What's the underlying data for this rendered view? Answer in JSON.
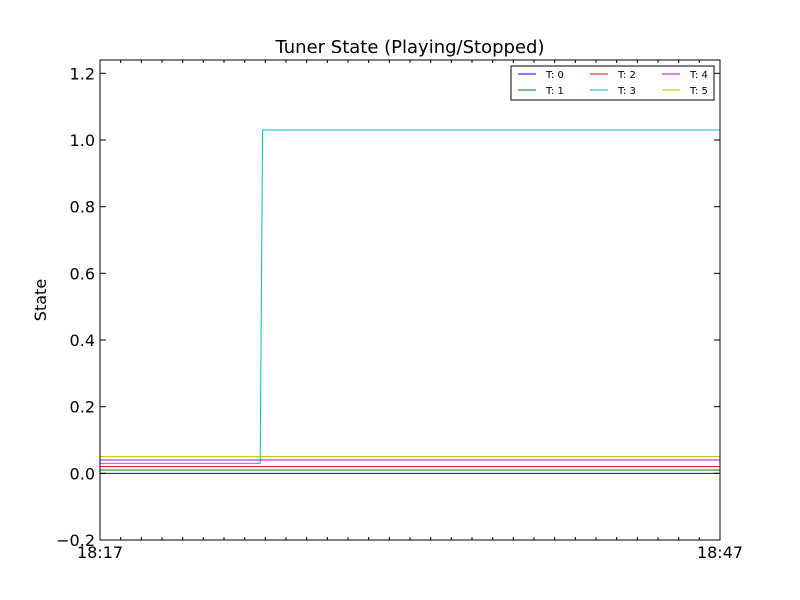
{
  "chart_data": {
    "type": "line",
    "title": "Tuner State (Playing/Stopped)",
    "xlabel": "",
    "ylabel": "State",
    "xlim": [
      "18:17",
      "18:47"
    ],
    "ylim": [
      -0.2,
      1.24
    ],
    "x_ticks": [
      "18:17",
      "18:47"
    ],
    "y_ticks": [
      -0.2,
      0.0,
      0.2,
      0.4,
      0.6,
      0.8,
      1.0,
      1.2
    ],
    "y_tick_labels": [
      "−0.2",
      "0.0",
      "0.2",
      "0.4",
      "0.6",
      "0.8",
      "1.0",
      "1.2"
    ],
    "legend_position": "top-right",
    "legend_columns": 3,
    "grid": false,
    "series": [
      {
        "name": "T: 0",
        "color": "#0000ff",
        "x": [
          "18:17",
          "18:47"
        ],
        "y": [
          0.0,
          0.0
        ]
      },
      {
        "name": "T: 1",
        "color": "#008000",
        "x": [
          "18:17",
          "18:47"
        ],
        "y": [
          0.01,
          0.01
        ]
      },
      {
        "name": "T: 2",
        "color": "#ff0000",
        "x": [
          "18:17",
          "18:47"
        ],
        "y": [
          0.02,
          0.02
        ]
      },
      {
        "name": "T: 3",
        "color": "#00bfbf",
        "x": [
          "18:17",
          "18:24:45",
          "18:24:52",
          "18:47"
        ],
        "y": [
          0.03,
          0.03,
          1.03,
          1.03
        ]
      },
      {
        "name": "T: 4",
        "color": "#bf00bf",
        "x": [
          "18:17",
          "18:47"
        ],
        "y": [
          0.04,
          0.04
        ]
      },
      {
        "name": "T: 5",
        "color": "#bfbf00",
        "x": [
          "18:17",
          "18:47"
        ],
        "y": [
          0.05,
          0.05
        ]
      }
    ]
  }
}
